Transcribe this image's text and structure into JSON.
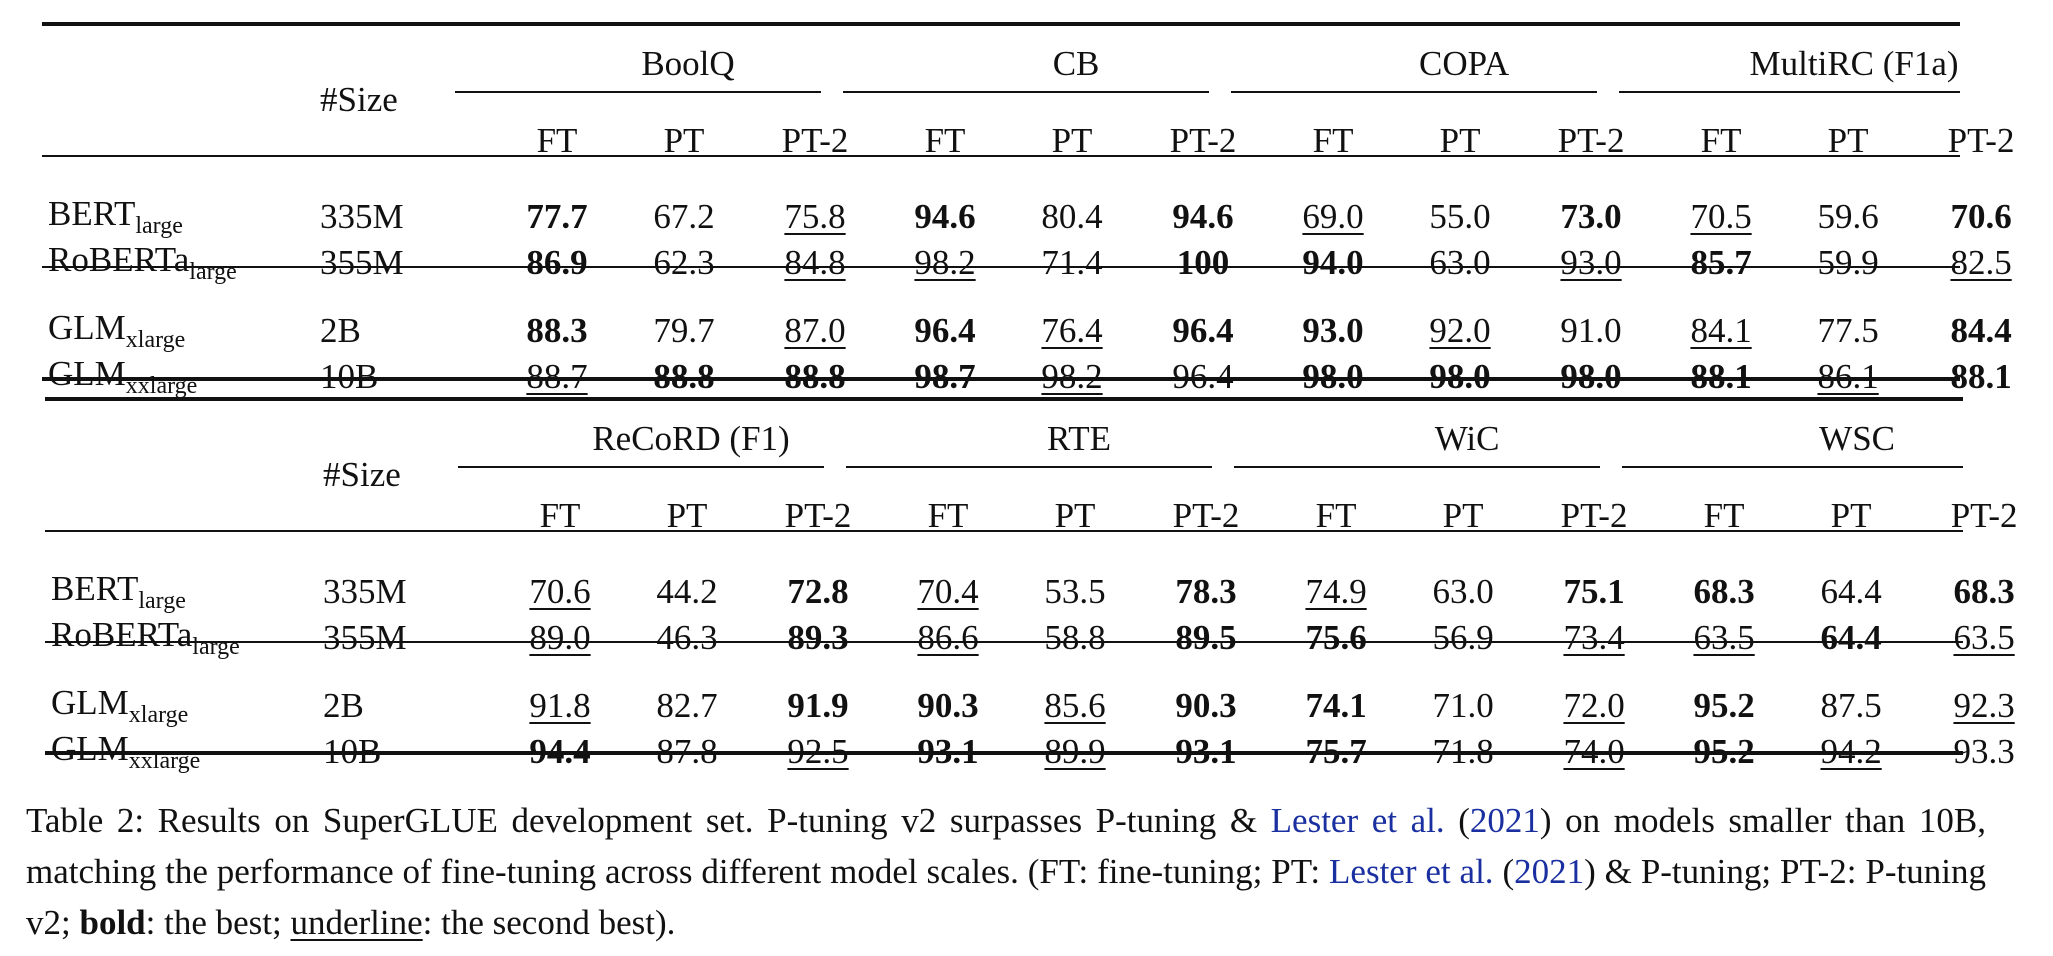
{
  "tables": [
    {
      "size_header": "#Size",
      "groups": [
        "BoolQ",
        "CB",
        "COPA",
        "MultiRC (F1a)"
      ],
      "sub_headers": [
        "FT",
        "PT",
        "PT-2"
      ],
      "rows": [
        {
          "model": "BERT",
          "model_sub": "large",
          "size": "335M",
          "cells": [
            {
              "v": "77.7",
              "s": "b"
            },
            {
              "v": "67.2",
              "s": ""
            },
            {
              "v": "75.8",
              "s": "u"
            },
            {
              "v": "94.6",
              "s": "b"
            },
            {
              "v": "80.4",
              "s": ""
            },
            {
              "v": "94.6",
              "s": "b"
            },
            {
              "v": "69.0",
              "s": "u"
            },
            {
              "v": "55.0",
              "s": ""
            },
            {
              "v": "73.0",
              "s": "b"
            },
            {
              "v": "70.5",
              "s": "u"
            },
            {
              "v": "59.6",
              "s": ""
            },
            {
              "v": "70.6",
              "s": "b"
            }
          ]
        },
        {
          "model": "RoBERTa",
          "model_sub": "large",
          "size": "355M",
          "cells": [
            {
              "v": "86.9",
              "s": "b"
            },
            {
              "v": "62.3",
              "s": ""
            },
            {
              "v": "84.8",
              "s": "u"
            },
            {
              "v": "98.2",
              "s": "u"
            },
            {
              "v": "71.4",
              "s": ""
            },
            {
              "v": "100",
              "s": "b"
            },
            {
              "v": "94.0",
              "s": "b"
            },
            {
              "v": "63.0",
              "s": ""
            },
            {
              "v": "93.0",
              "s": "u"
            },
            {
              "v": "85.7",
              "s": "b"
            },
            {
              "v": "59.9",
              "s": ""
            },
            {
              "v": "82.5",
              "s": "u"
            }
          ]
        },
        {
          "model": "GLM",
          "model_sub": "xlarge",
          "size": "2B",
          "cells": [
            {
              "v": "88.3",
              "s": "b"
            },
            {
              "v": "79.7",
              "s": ""
            },
            {
              "v": "87.0",
              "s": "u"
            },
            {
              "v": "96.4",
              "s": "b"
            },
            {
              "v": "76.4",
              "s": "u"
            },
            {
              "v": "96.4",
              "s": "b"
            },
            {
              "v": "93.0",
              "s": "b"
            },
            {
              "v": "92.0",
              "s": "u"
            },
            {
              "v": "91.0",
              "s": ""
            },
            {
              "v": "84.1",
              "s": "u"
            },
            {
              "v": "77.5",
              "s": ""
            },
            {
              "v": "84.4",
              "s": "b"
            }
          ]
        },
        {
          "model": "GLM",
          "model_sub": "xxlarge",
          "size": "10B",
          "cells": [
            {
              "v": "88.7",
              "s": "u"
            },
            {
              "v": "88.8",
              "s": "b"
            },
            {
              "v": "88.8",
              "s": "b"
            },
            {
              "v": "98.7",
              "s": "b"
            },
            {
              "v": "98.2",
              "s": "u"
            },
            {
              "v": "96.4",
              "s": ""
            },
            {
              "v": "98.0",
              "s": "b"
            },
            {
              "v": "98.0",
              "s": "b"
            },
            {
              "v": "98.0",
              "s": "b"
            },
            {
              "v": "88.1",
              "s": "b"
            },
            {
              "v": "86.1",
              "s": "u"
            },
            {
              "v": "88.1",
              "s": "b"
            }
          ]
        }
      ]
    },
    {
      "size_header": "#Size",
      "groups": [
        "ReCoRD (F1)",
        "RTE",
        "WiC",
        "WSC"
      ],
      "sub_headers": [
        "FT",
        "PT",
        "PT-2"
      ],
      "rows": [
        {
          "model": "BERT",
          "model_sub": "large",
          "size": "335M",
          "cells": [
            {
              "v": "70.6",
              "s": "u"
            },
            {
              "v": "44.2",
              "s": ""
            },
            {
              "v": "72.8",
              "s": "b"
            },
            {
              "v": "70.4",
              "s": "u"
            },
            {
              "v": "53.5",
              "s": ""
            },
            {
              "v": "78.3",
              "s": "b"
            },
            {
              "v": "74.9",
              "s": "u"
            },
            {
              "v": "63.0",
              "s": ""
            },
            {
              "v": "75.1",
              "s": "b"
            },
            {
              "v": "68.3",
              "s": "b"
            },
            {
              "v": "64.4",
              "s": ""
            },
            {
              "v": "68.3",
              "s": "b"
            }
          ]
        },
        {
          "model": "RoBERTa",
          "model_sub": "large",
          "size": "355M",
          "cells": [
            {
              "v": "89.0",
              "s": "u"
            },
            {
              "v": "46.3",
              "s": ""
            },
            {
              "v": "89.3",
              "s": "b"
            },
            {
              "v": "86.6",
              "s": "u"
            },
            {
              "v": "58.8",
              "s": ""
            },
            {
              "v": "89.5",
              "s": "b"
            },
            {
              "v": "75.6",
              "s": "b"
            },
            {
              "v": "56.9",
              "s": ""
            },
            {
              "v": "73.4",
              "s": "u"
            },
            {
              "v": "63.5",
              "s": "u"
            },
            {
              "v": "64.4",
              "s": "b"
            },
            {
              "v": "63.5",
              "s": "u"
            }
          ]
        },
        {
          "model": "GLM",
          "model_sub": "xlarge",
          "size": "2B",
          "cells": [
            {
              "v": "91.8",
              "s": "u"
            },
            {
              "v": "82.7",
              "s": ""
            },
            {
              "v": "91.9",
              "s": "b"
            },
            {
              "v": "90.3",
              "s": "b"
            },
            {
              "v": "85.6",
              "s": "u"
            },
            {
              "v": "90.3",
              "s": "b"
            },
            {
              "v": "74.1",
              "s": "b"
            },
            {
              "v": "71.0",
              "s": ""
            },
            {
              "v": "72.0",
              "s": "u"
            },
            {
              "v": "95.2",
              "s": "b"
            },
            {
              "v": "87.5",
              "s": ""
            },
            {
              "v": "92.3",
              "s": "u"
            }
          ]
        },
        {
          "model": "GLM",
          "model_sub": "xxlarge",
          "size": "10B",
          "cells": [
            {
              "v": "94.4",
              "s": "b"
            },
            {
              "v": "87.8",
              "s": ""
            },
            {
              "v": "92.5",
              "s": "u"
            },
            {
              "v": "93.1",
              "s": "b"
            },
            {
              "v": "89.9",
              "s": "u"
            },
            {
              "v": "93.1",
              "s": "b"
            },
            {
              "v": "75.7",
              "s": "b"
            },
            {
              "v": "71.8",
              "s": ""
            },
            {
              "v": "74.0",
              "s": "u"
            },
            {
              "v": "95.2",
              "s": "b"
            },
            {
              "v": "94.2",
              "s": "u"
            },
            {
              "v": "93.3",
              "s": ""
            }
          ]
        }
      ]
    }
  ],
  "caption": {
    "lead": "Table 2: Results on SuperGLUE development set. P-tuning v2 surpasses P-tuning & ",
    "cite1_name": "Lester et al.",
    "cite1_open": " (",
    "cite1_year": "2021",
    "mid1": ") on models smaller than 10B, matching the performance of fine-tuning across different model scales. (FT: fine-tuning; PT: ",
    "cite2_name": "Lester et al.",
    "cite2_open": " (",
    "cite2_year": "2021",
    "mid2": ") & P-tuning; PT-2: P-tuning v2; ",
    "bold_word": "bold",
    "mid3": ": the best; ",
    "underline_word": "underline",
    "tail": ": the second best)."
  }
}
